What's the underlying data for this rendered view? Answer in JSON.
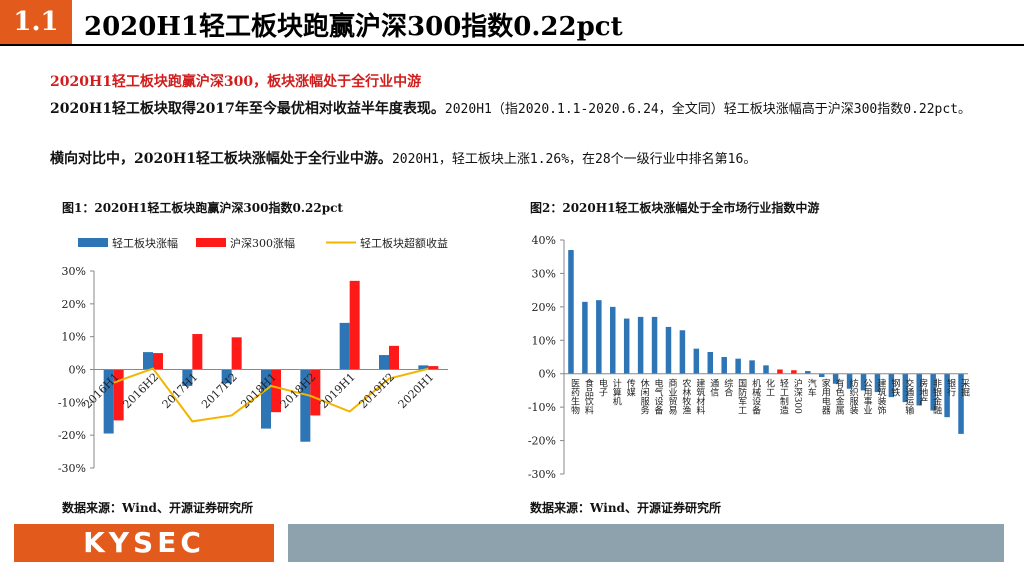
{
  "header": {
    "section_number": "1.1",
    "title": "2020H1轻工板块跑赢沪深300指数0.22pct"
  },
  "subheading": "2020H1轻工板块跑赢沪深300，板块涨幅处于全行业中游",
  "paragraphs": [
    {
      "lead": "2020H1轻工板块取得2017年至今最优相对收益半年度表现。",
      "rest": "2020H1（指2020.1.1-2020.6.24，全文同）轻工板块涨幅高于沪深300指数0.22pct。"
    },
    {
      "lead": "横向对比中，2020H1轻工板块涨幅处于全行业中游。",
      "rest": "2020H1，轻工板块上涨1.26%，在28个一级行业中排名第16。"
    }
  ],
  "figure1": {
    "caption": "图1：2020H1轻工板块跑赢沪深300指数0.22pct",
    "source": "数据来源：Wind、开源证券研究所"
  },
  "figure2": {
    "caption": "图2：2020H1轻工板块涨幅处于全市场行业指数中游",
    "source": "数据来源：Wind、开源证券研究所"
  },
  "footer": {
    "logo_text": "KYSEC"
  },
  "chart_data": [
    {
      "type": "bar",
      "categories": [
        "2016H1",
        "2016H2",
        "2017H1",
        "2017H2",
        "2018H1",
        "2018H2",
        "2019H1",
        "2019H2",
        "2020H1"
      ],
      "series": [
        {
          "name": "轻工板块涨幅",
          "kind": "bar",
          "color": "#2e75b6",
          "values": [
            -19.5,
            5.3,
            -5.0,
            -4.2,
            -18.0,
            -22.0,
            14.2,
            4.4,
            1.26
          ]
        },
        {
          "name": "沪深300涨幅",
          "kind": "bar",
          "color": "#ff1a1a",
          "values": [
            -15.5,
            5.0,
            10.8,
            9.8,
            -13.0,
            -14.0,
            27.0,
            7.2,
            1.04
          ]
        },
        {
          "name": "轻工板块超额收益",
          "kind": "line",
          "color": "#f2b600",
          "values": [
            -4.0,
            0.3,
            -15.8,
            -14.0,
            -5.0,
            -8.0,
            -12.8,
            -2.8,
            0.22
          ]
        }
      ],
      "yticks": [
        "30%",
        "20%",
        "10%",
        "0%",
        "-10%",
        "-20%",
        "-30%"
      ],
      "ylim": [
        -30,
        30
      ],
      "legend": "top",
      "grid": false
    },
    {
      "type": "bar",
      "categories": [
        "医药生物",
        "食品饮料",
        "电子",
        "计算机",
        "传媒",
        "休闲服务",
        "电气设备",
        "商业贸易",
        "农林牧渔",
        "建筑材料",
        "通信",
        "综合",
        "国防军工",
        "机械设备",
        "化工",
        "轻工制造",
        "沪深300",
        "汽车",
        "家用电器",
        "有色金属",
        "纺织服装",
        "公用事业",
        "建筑装饰",
        "钢铁",
        "交通运输",
        "房地产",
        "非银金融",
        "银行",
        "采掘"
      ],
      "values": [
        37,
        21.5,
        22,
        20,
        16.5,
        17,
        17,
        14,
        13,
        7.5,
        6.5,
        5,
        4.5,
        4,
        2.5,
        1.26,
        1.04,
        0.8,
        -1,
        -3,
        -4.5,
        -5,
        -5.5,
        -7,
        -8.5,
        -9.5,
        -11,
        -13,
        -18
      ],
      "colors": {
        "default": "#2e75b6",
        "highlight": "#ff1a1a"
      },
      "highlight_categories": [
        "轻工制造",
        "沪深300"
      ],
      "yticks": [
        "40%",
        "30%",
        "20%",
        "10%",
        "0%",
        "-10%",
        "-20%",
        "-30%"
      ],
      "ylim": [
        -30,
        40
      ],
      "grid": false
    }
  ]
}
